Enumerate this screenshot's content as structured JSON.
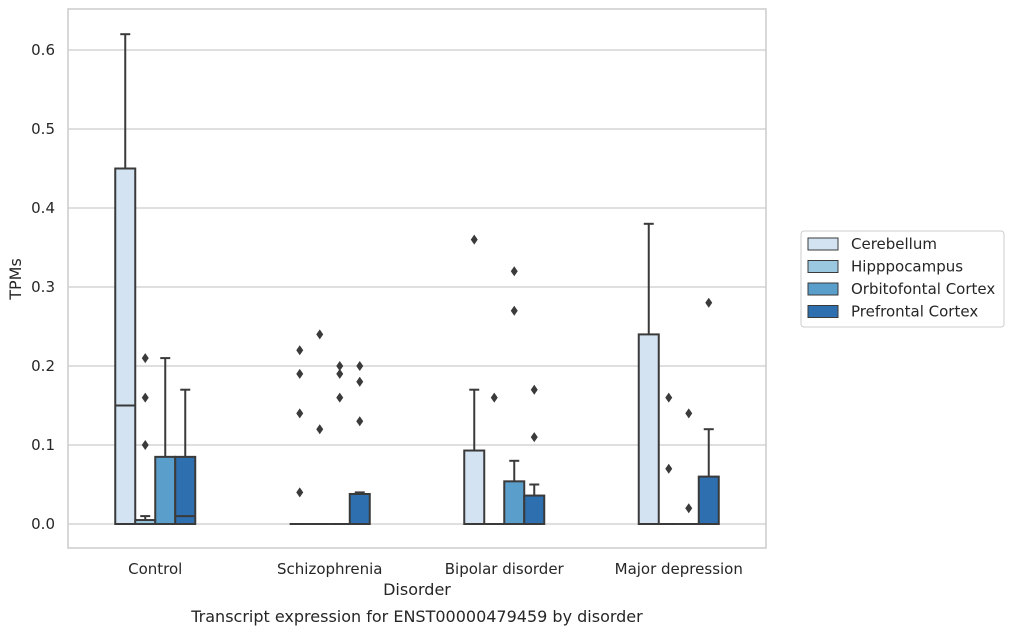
{
  "caption": "Transcript expression for ENST00000479459 by disorder",
  "chart_data": {
    "type": "box",
    "xlabel": "Disorder",
    "ylabel": "TPMs",
    "ylim": [
      -0.03,
      0.65
    ],
    "yticks": [
      "0.0",
      "0.1",
      "0.2",
      "0.3",
      "0.4",
      "0.5",
      "0.6"
    ],
    "grid": "horizontal",
    "legend_position": "right",
    "categories": [
      "Control",
      "Schizophrenia",
      "Bipolar disorder",
      "Major depression"
    ],
    "series": [
      {
        "name": "Cerebellum",
        "color": "#d3e3f2",
        "boxes": [
          {
            "q1": 0.0,
            "median": 0.15,
            "q3": 0.45,
            "whisker_low": 0.0,
            "whisker_high": 0.62,
            "outliers": []
          },
          {
            "q1": 0.0,
            "median": 0.0,
            "q3": 0.0,
            "whisker_low": 0.0,
            "whisker_high": 0.0,
            "outliers": [
              0.22,
              0.19,
              0.14,
              0.04
            ]
          },
          {
            "q1": 0.0,
            "median": 0.0,
            "q3": 0.093,
            "whisker_low": 0.0,
            "whisker_high": 0.17,
            "outliers": [
              0.36
            ]
          },
          {
            "q1": 0.0,
            "median": 0.0,
            "q3": 0.24,
            "whisker_low": 0.0,
            "whisker_high": 0.38,
            "outliers": []
          }
        ]
      },
      {
        "name": "Hipppocampus",
        "color": "#9ac8e0",
        "boxes": [
          {
            "q1": 0.0,
            "median": 0.0,
            "q3": 0.005,
            "whisker_low": 0.0,
            "whisker_high": 0.01,
            "outliers": [
              0.21,
              0.16,
              0.1
            ]
          },
          {
            "q1": 0.0,
            "median": 0.0,
            "q3": 0.0,
            "whisker_low": 0.0,
            "whisker_high": 0.0,
            "outliers": [
              0.24,
              0.12
            ]
          },
          {
            "q1": 0.0,
            "median": 0.0,
            "q3": 0.0,
            "whisker_low": 0.0,
            "whisker_high": 0.0,
            "outliers": [
              0.16
            ]
          },
          {
            "q1": 0.0,
            "median": 0.0,
            "q3": 0.0,
            "whisker_low": 0.0,
            "whisker_high": 0.0,
            "outliers": [
              0.16,
              0.07
            ]
          }
        ]
      },
      {
        "name": "Orbitofontal Cortex",
        "color": "#5a9ecb",
        "boxes": [
          {
            "q1": 0.0,
            "median": 0.0,
            "q3": 0.085,
            "whisker_low": 0.0,
            "whisker_high": 0.21,
            "outliers": []
          },
          {
            "q1": 0.0,
            "median": 0.0,
            "q3": 0.0,
            "whisker_low": 0.0,
            "whisker_high": 0.0,
            "outliers": [
              0.2,
              0.19,
              0.16
            ]
          },
          {
            "q1": 0.0,
            "median": 0.0,
            "q3": 0.054,
            "whisker_low": 0.0,
            "whisker_high": 0.08,
            "outliers": [
              0.32,
              0.27
            ]
          },
          {
            "q1": 0.0,
            "median": 0.0,
            "q3": 0.0,
            "whisker_low": 0.0,
            "whisker_high": 0.0,
            "outliers": [
              0.14,
              0.02
            ]
          }
        ]
      },
      {
        "name": "Prefrontal Cortex",
        "color": "#2d6faf",
        "boxes": [
          {
            "q1": 0.0,
            "median": 0.01,
            "q3": 0.085,
            "whisker_low": 0.0,
            "whisker_high": 0.17,
            "outliers": []
          },
          {
            "q1": 0.0,
            "median": 0.0,
            "q3": 0.038,
            "whisker_low": 0.0,
            "whisker_high": 0.04,
            "outliers": [
              0.2,
              0.18,
              0.13
            ]
          },
          {
            "q1": 0.0,
            "median": 0.0,
            "q3": 0.036,
            "whisker_low": 0.0,
            "whisker_high": 0.05,
            "outliers": [
              0.17,
              0.11
            ]
          },
          {
            "q1": 0.0,
            "median": 0.0,
            "q3": 0.06,
            "whisker_low": 0.0,
            "whisker_high": 0.12,
            "outliers": [
              0.28
            ]
          }
        ]
      }
    ]
  }
}
